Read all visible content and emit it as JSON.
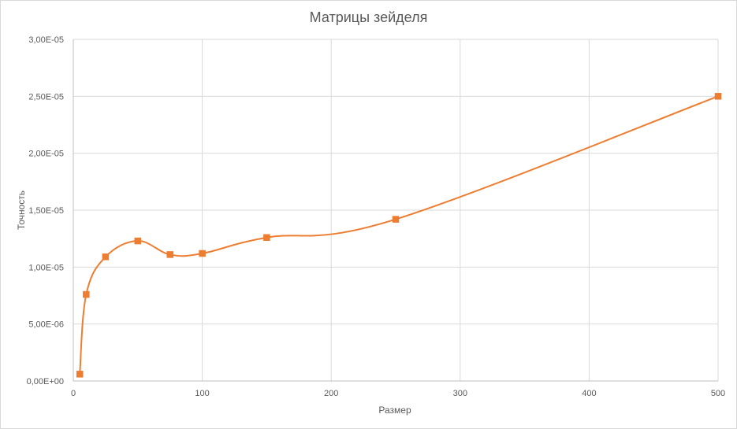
{
  "chart_data": {
    "type": "scatter",
    "title": "Матрицы зейделя",
    "xlabel": "Размер",
    "ylabel": "Точность",
    "xlim": [
      0,
      500
    ],
    "ylim": [
      0,
      3e-05
    ],
    "x_ticks": [
      "0",
      "100",
      "200",
      "300",
      "400",
      "500"
    ],
    "y_ticks": [
      "0,00E+00",
      "5,00E-06",
      "1,00E-05",
      "1,50E-05",
      "2,00E-05",
      "2,50E-05",
      "3,00E-05"
    ],
    "grid": true,
    "series": [
      {
        "color": "#ed7d31",
        "marker": "square",
        "line": "smooth",
        "points": [
          {
            "x": 5,
            "y": 6e-07
          },
          {
            "x": 10,
            "y": 7.6e-06
          },
          {
            "x": 25,
            "y": 1.09e-05
          },
          {
            "x": 50,
            "y": 1.23e-05
          },
          {
            "x": 75,
            "y": 1.11e-05
          },
          {
            "x": 100,
            "y": 1.12e-05
          },
          {
            "x": 150,
            "y": 1.26e-05
          },
          {
            "x": 250,
            "y": 1.42e-05
          },
          {
            "x": 500,
            "y": 2.5e-05
          }
        ]
      }
    ]
  }
}
